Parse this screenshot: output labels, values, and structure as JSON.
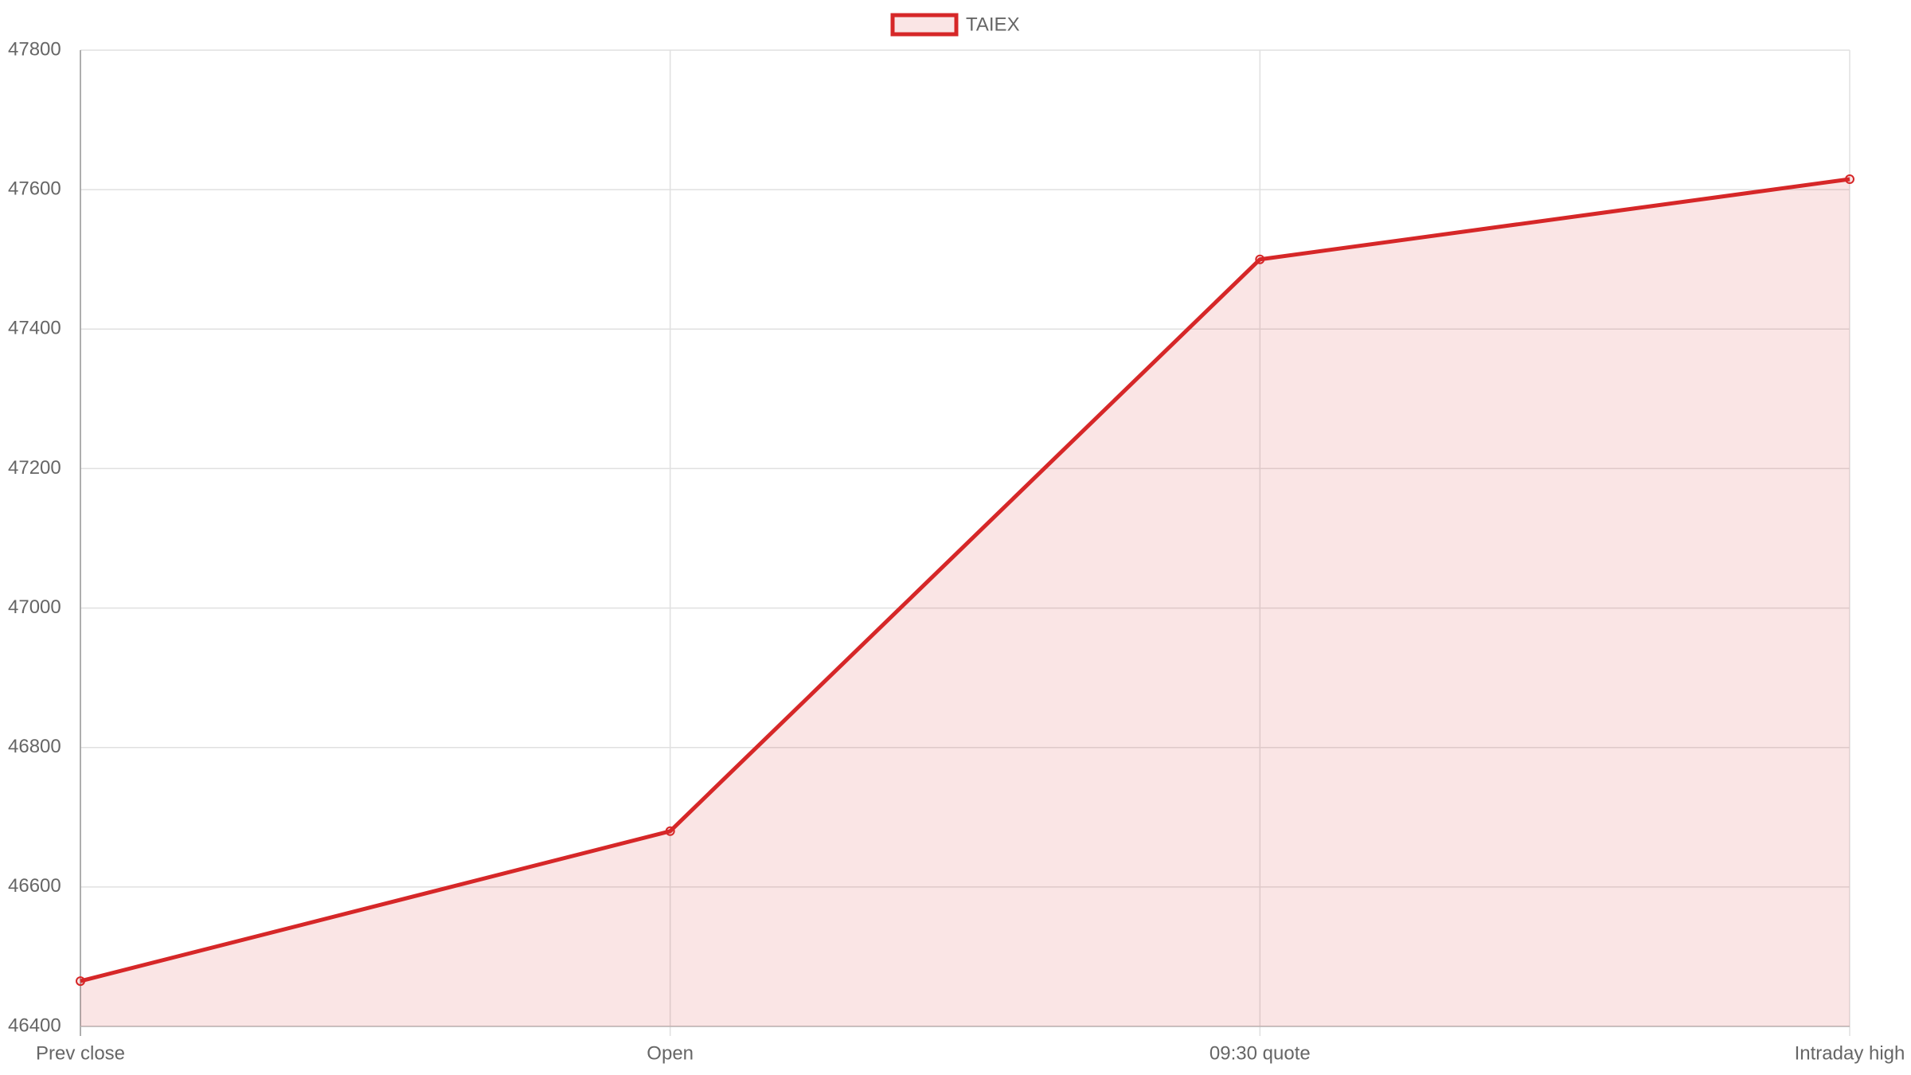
{
  "chart_data": {
    "type": "line",
    "categories": [
      "Prev close",
      "Open",
      "09:30 quote",
      "Intraday high"
    ],
    "series": [
      {
        "name": "TAIEX",
        "color": "#d62728",
        "fill": "rgba(214,39,40,0.12)",
        "values": [
          46465,
          46680,
          47500,
          47615
        ]
      }
    ],
    "ylim": [
      46400,
      47800
    ],
    "yticks": [
      46400,
      46600,
      46800,
      47000,
      47200,
      47400,
      47600,
      47800
    ],
    "grid": true,
    "legend": "top"
  }
}
